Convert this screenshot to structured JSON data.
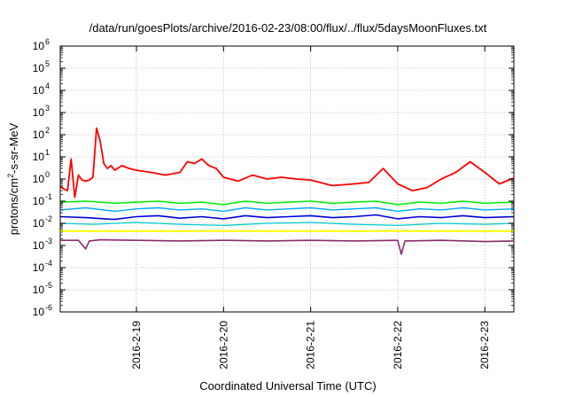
{
  "chart_data": {
    "type": "line",
    "title": "/data/run/goesPlots/archive/2016-02-23/08:00/flux/../flux/5daysMoonFluxes.txt",
    "xlabel": "Coordinated Universal Time (UTC)",
    "ylabel": {
      "prefix": "protons/cm",
      "sup": "2",
      "suffix": "-s-sr-MeV"
    },
    "yscale": "log",
    "ylim": [
      -6,
      6
    ],
    "y_ticks": [
      {
        "base": "10",
        "exp": "-6"
      },
      {
        "base": "10",
        "exp": "-5"
      },
      {
        "base": "10",
        "exp": "-4"
      },
      {
        "base": "10",
        "exp": "-3"
      },
      {
        "base": "10",
        "exp": "-2"
      },
      {
        "base": "10",
        "exp": "-1"
      },
      {
        "base": "10",
        "exp": "0"
      },
      {
        "base": "10",
        "exp": "1"
      },
      {
        "base": "10",
        "exp": "2"
      },
      {
        "base": "10",
        "exp": "3"
      },
      {
        "base": "10",
        "exp": "4"
      },
      {
        "base": "10",
        "exp": "5"
      },
      {
        "base": "10",
        "exp": "6"
      }
    ],
    "x_start": "2016-02-18 03:00",
    "x_end": "2016-02-23 08:00",
    "x_ticks": [
      {
        "label": "2016-2-19",
        "date": "2016-02-19"
      },
      {
        "label": "2016-2-20",
        "date": "2016-02-20"
      },
      {
        "label": "2016-2-21",
        "date": "2016-02-21"
      },
      {
        "label": "2016-2-22",
        "date": "2016-02-22"
      },
      {
        "label": "2016-2-23",
        "date": "2016-02-23"
      }
    ],
    "grid": true,
    "series": [
      {
        "color": "#ff0000",
        "width": 1.8,
        "x": [
          "2016-02-18 03:00",
          "2016-02-18 04:00",
          "2016-02-18 05:00",
          "2016-02-18 06:00",
          "2016-02-18 07:00",
          "2016-02-18 08:00",
          "2016-02-18 09:00",
          "2016-02-18 10:00",
          "2016-02-18 11:00",
          "2016-02-18 12:00",
          "2016-02-18 13:00",
          "2016-02-18 14:00",
          "2016-02-18 15:00",
          "2016-02-18 16:00",
          "2016-02-18 17:00",
          "2016-02-18 18:00",
          "2016-02-18 20:00",
          "2016-02-18 22:00",
          "2016-02-19 00:00",
          "2016-02-19 04:00",
          "2016-02-19 08:00",
          "2016-02-19 12:00",
          "2016-02-19 14:00",
          "2016-02-19 16:00",
          "2016-02-19 18:00",
          "2016-02-19 20:00",
          "2016-02-19 22:00",
          "2016-02-20 00:00",
          "2016-02-20 04:00",
          "2016-02-20 08:00",
          "2016-02-20 12:00",
          "2016-02-20 16:00",
          "2016-02-20 20:00",
          "2016-02-21 00:00",
          "2016-02-21 06:00",
          "2016-02-21 12:00",
          "2016-02-21 16:00",
          "2016-02-21 20:00",
          "2016-02-22 00:00",
          "2016-02-22 04:00",
          "2016-02-22 08:00",
          "2016-02-22 12:00",
          "2016-02-22 16:00",
          "2016-02-22 20:00",
          "2016-02-23 00:00",
          "2016-02-23 04:00",
          "2016-02-23 08:00"
        ],
        "y": [
          0.5,
          0.35,
          0.3,
          8,
          0.15,
          1.5,
          0.9,
          0.8,
          0.9,
          1.2,
          200,
          50,
          5,
          3,
          4,
          2.5,
          4,
          3,
          2.5,
          2,
          1.5,
          2,
          6,
          5,
          8,
          4,
          3,
          1.2,
          0.8,
          1.5,
          1.0,
          1.2,
          1.0,
          0.9,
          0.5,
          0.6,
          0.7,
          3,
          0.6,
          0.3,
          0.4,
          1,
          2,
          6,
          2,
          0.6,
          1.1
        ]
      },
      {
        "color": "#00ee00",
        "width": 1.5,
        "x": [
          "2016-02-18 03:00",
          "2016-02-18 10:00",
          "2016-02-18 18:00",
          "2016-02-19 00:00",
          "2016-02-19 06:00",
          "2016-02-19 12:00",
          "2016-02-19 18:00",
          "2016-02-20 00:00",
          "2016-02-20 06:00",
          "2016-02-20 12:00",
          "2016-02-20 18:00",
          "2016-02-21 00:00",
          "2016-02-21 06:00",
          "2016-02-21 12:00",
          "2016-02-21 18:00",
          "2016-02-22 00:00",
          "2016-02-22 06:00",
          "2016-02-22 12:00",
          "2016-02-22 18:00",
          "2016-02-23 00:00",
          "2016-02-23 08:00"
        ],
        "y": [
          0.09,
          0.1,
          0.08,
          0.09,
          0.1,
          0.08,
          0.09,
          0.07,
          0.1,
          0.08,
          0.09,
          0.1,
          0.08,
          0.09,
          0.1,
          0.07,
          0.09,
          0.08,
          0.1,
          0.08,
          0.09
        ]
      },
      {
        "color": "#00aaff",
        "width": 1.4,
        "x": [
          "2016-02-18 03:00",
          "2016-02-18 10:00",
          "2016-02-18 18:00",
          "2016-02-19 00:00",
          "2016-02-19 06:00",
          "2016-02-19 12:00",
          "2016-02-19 18:00",
          "2016-02-20 00:00",
          "2016-02-20 06:00",
          "2016-02-20 12:00",
          "2016-02-20 18:00",
          "2016-02-21 00:00",
          "2016-02-21 06:00",
          "2016-02-21 12:00",
          "2016-02-21 18:00",
          "2016-02-22 00:00",
          "2016-02-22 06:00",
          "2016-02-22 12:00",
          "2016-02-22 18:00",
          "2016-02-23 00:00",
          "2016-02-23 08:00"
        ],
        "y": [
          0.04,
          0.05,
          0.035,
          0.045,
          0.05,
          0.04,
          0.045,
          0.035,
          0.05,
          0.04,
          0.045,
          0.05,
          0.04,
          0.045,
          0.05,
          0.035,
          0.045,
          0.04,
          0.05,
          0.04,
          0.045
        ]
      },
      {
        "color": "#0000dd",
        "width": 1.6,
        "x": [
          "2016-02-18 03:00",
          "2016-02-18 10:00",
          "2016-02-18 18:00",
          "2016-02-19 00:00",
          "2016-02-19 06:00",
          "2016-02-19 12:00",
          "2016-02-19 18:00",
          "2016-02-20 00:00",
          "2016-02-20 06:00",
          "2016-02-20 12:00",
          "2016-02-20 18:00",
          "2016-02-21 00:00",
          "2016-02-21 06:00",
          "2016-02-21 12:00",
          "2016-02-21 18:00",
          "2016-02-22 00:00",
          "2016-02-22 06:00",
          "2016-02-22 12:00",
          "2016-02-22 18:00",
          "2016-02-23 00:00",
          "2016-02-23 08:00"
        ],
        "y": [
          0.02,
          0.018,
          0.015,
          0.02,
          0.022,
          0.017,
          0.02,
          0.016,
          0.022,
          0.018,
          0.02,
          0.022,
          0.018,
          0.02,
          0.024,
          0.016,
          0.02,
          0.018,
          0.022,
          0.018,
          0.02
        ]
      },
      {
        "color": "#00cccc",
        "width": 1.3,
        "x": [
          "2016-02-18 03:00",
          "2016-02-18 12:00",
          "2016-02-19 00:00",
          "2016-02-19 12:00",
          "2016-02-20 00:00",
          "2016-02-20 12:00",
          "2016-02-21 00:00",
          "2016-02-21 12:00",
          "2016-02-22 00:00",
          "2016-02-22 12:00",
          "2016-02-23 00:00",
          "2016-02-23 08:00"
        ],
        "y": [
          0.01,
          0.009,
          0.011,
          0.009,
          0.008,
          0.01,
          0.011,
          0.009,
          0.008,
          0.01,
          0.009,
          0.01
        ]
      },
      {
        "color": "#ffff00",
        "width": 2.0,
        "x": [
          "2016-02-18 03:00",
          "2016-02-18 12:00",
          "2016-02-19 00:00",
          "2016-02-19 12:00",
          "2016-02-20 00:00",
          "2016-02-20 12:00",
          "2016-02-21 00:00",
          "2016-02-21 12:00",
          "2016-02-22 00:00",
          "2016-02-22 12:00",
          "2016-02-23 00:00",
          "2016-02-23 08:00"
        ],
        "y": [
          0.0045,
          0.0045,
          0.0045,
          0.0045,
          0.0045,
          0.0045,
          0.0045,
          0.0045,
          0.0045,
          0.0045,
          0.0045,
          0.0045
        ]
      },
      {
        "color": "#8b2a6b",
        "width": 1.6,
        "x": [
          "2016-02-18 03:00",
          "2016-02-18 08:00",
          "2016-02-18 10:00",
          "2016-02-18 11:00",
          "2016-02-18 14:00",
          "2016-02-19 00:00",
          "2016-02-19 12:00",
          "2016-02-20 00:00",
          "2016-02-20 12:00",
          "2016-02-21 00:00",
          "2016-02-21 12:00",
          "2016-02-22 00:00",
          "2016-02-22 01:00",
          "2016-02-22 02:00",
          "2016-02-22 12:00",
          "2016-02-23 00:00",
          "2016-02-23 08:00"
        ],
        "y": [
          0.0017,
          0.0017,
          0.0007,
          0.0016,
          0.0018,
          0.0017,
          0.0016,
          0.0017,
          0.0016,
          0.0017,
          0.0016,
          0.0017,
          0.0004,
          0.0016,
          0.0017,
          0.0015,
          0.0016
        ]
      }
    ]
  }
}
